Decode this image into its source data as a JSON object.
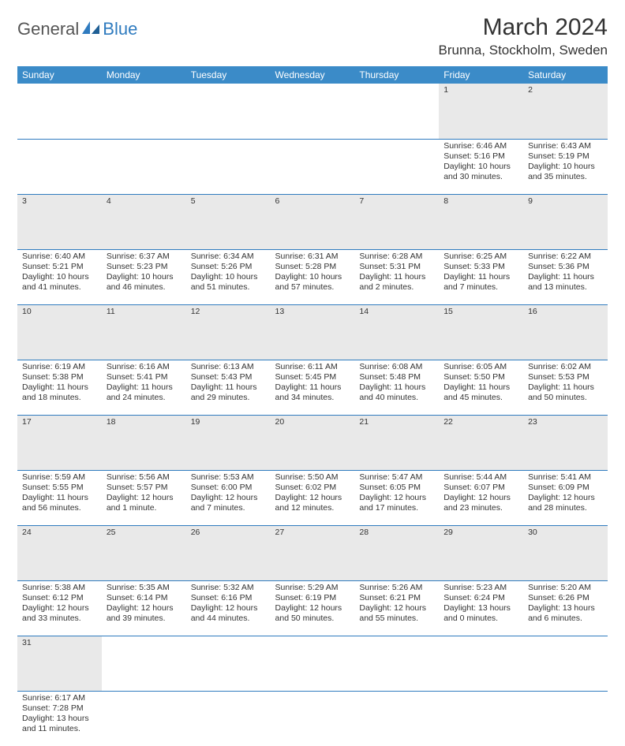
{
  "logo": {
    "text1": "General",
    "text2": "Blue"
  },
  "title": "March 2024",
  "location": "Brunna, Stockholm, Sweden",
  "colors": {
    "header_bg": "#3b8bc8",
    "row_divider": "#2f7bbf",
    "daynum_bg": "#e9e9e9",
    "logo_accent": "#2f7bbf"
  },
  "day_headers": [
    "Sunday",
    "Monday",
    "Tuesday",
    "Wednesday",
    "Thursday",
    "Friday",
    "Saturday"
  ],
  "weeks": [
    {
      "nums": [
        "",
        "",
        "",
        "",
        "",
        "1",
        "2"
      ],
      "cells": [
        null,
        null,
        null,
        null,
        null,
        {
          "sunrise": "Sunrise: 6:46 AM",
          "sunset": "Sunset: 5:16 PM",
          "day1": "Daylight: 10 hours",
          "day2": "and 30 minutes."
        },
        {
          "sunrise": "Sunrise: 6:43 AM",
          "sunset": "Sunset: 5:19 PM",
          "day1": "Daylight: 10 hours",
          "day2": "and 35 minutes."
        }
      ]
    },
    {
      "nums": [
        "3",
        "4",
        "5",
        "6",
        "7",
        "8",
        "9"
      ],
      "cells": [
        {
          "sunrise": "Sunrise: 6:40 AM",
          "sunset": "Sunset: 5:21 PM",
          "day1": "Daylight: 10 hours",
          "day2": "and 41 minutes."
        },
        {
          "sunrise": "Sunrise: 6:37 AM",
          "sunset": "Sunset: 5:23 PM",
          "day1": "Daylight: 10 hours",
          "day2": "and 46 minutes."
        },
        {
          "sunrise": "Sunrise: 6:34 AM",
          "sunset": "Sunset: 5:26 PM",
          "day1": "Daylight: 10 hours",
          "day2": "and 51 minutes."
        },
        {
          "sunrise": "Sunrise: 6:31 AM",
          "sunset": "Sunset: 5:28 PM",
          "day1": "Daylight: 10 hours",
          "day2": "and 57 minutes."
        },
        {
          "sunrise": "Sunrise: 6:28 AM",
          "sunset": "Sunset: 5:31 PM",
          "day1": "Daylight: 11 hours",
          "day2": "and 2 minutes."
        },
        {
          "sunrise": "Sunrise: 6:25 AM",
          "sunset": "Sunset: 5:33 PM",
          "day1": "Daylight: 11 hours",
          "day2": "and 7 minutes."
        },
        {
          "sunrise": "Sunrise: 6:22 AM",
          "sunset": "Sunset: 5:36 PM",
          "day1": "Daylight: 11 hours",
          "day2": "and 13 minutes."
        }
      ]
    },
    {
      "nums": [
        "10",
        "11",
        "12",
        "13",
        "14",
        "15",
        "16"
      ],
      "cells": [
        {
          "sunrise": "Sunrise: 6:19 AM",
          "sunset": "Sunset: 5:38 PM",
          "day1": "Daylight: 11 hours",
          "day2": "and 18 minutes."
        },
        {
          "sunrise": "Sunrise: 6:16 AM",
          "sunset": "Sunset: 5:41 PM",
          "day1": "Daylight: 11 hours",
          "day2": "and 24 minutes."
        },
        {
          "sunrise": "Sunrise: 6:13 AM",
          "sunset": "Sunset: 5:43 PM",
          "day1": "Daylight: 11 hours",
          "day2": "and 29 minutes."
        },
        {
          "sunrise": "Sunrise: 6:11 AM",
          "sunset": "Sunset: 5:45 PM",
          "day1": "Daylight: 11 hours",
          "day2": "and 34 minutes."
        },
        {
          "sunrise": "Sunrise: 6:08 AM",
          "sunset": "Sunset: 5:48 PM",
          "day1": "Daylight: 11 hours",
          "day2": "and 40 minutes."
        },
        {
          "sunrise": "Sunrise: 6:05 AM",
          "sunset": "Sunset: 5:50 PM",
          "day1": "Daylight: 11 hours",
          "day2": "and 45 minutes."
        },
        {
          "sunrise": "Sunrise: 6:02 AM",
          "sunset": "Sunset: 5:53 PM",
          "day1": "Daylight: 11 hours",
          "day2": "and 50 minutes."
        }
      ]
    },
    {
      "nums": [
        "17",
        "18",
        "19",
        "20",
        "21",
        "22",
        "23"
      ],
      "cells": [
        {
          "sunrise": "Sunrise: 5:59 AM",
          "sunset": "Sunset: 5:55 PM",
          "day1": "Daylight: 11 hours",
          "day2": "and 56 minutes."
        },
        {
          "sunrise": "Sunrise: 5:56 AM",
          "sunset": "Sunset: 5:57 PM",
          "day1": "Daylight: 12 hours",
          "day2": "and 1 minute."
        },
        {
          "sunrise": "Sunrise: 5:53 AM",
          "sunset": "Sunset: 6:00 PM",
          "day1": "Daylight: 12 hours",
          "day2": "and 7 minutes."
        },
        {
          "sunrise": "Sunrise: 5:50 AM",
          "sunset": "Sunset: 6:02 PM",
          "day1": "Daylight: 12 hours",
          "day2": "and 12 minutes."
        },
        {
          "sunrise": "Sunrise: 5:47 AM",
          "sunset": "Sunset: 6:05 PM",
          "day1": "Daylight: 12 hours",
          "day2": "and 17 minutes."
        },
        {
          "sunrise": "Sunrise: 5:44 AM",
          "sunset": "Sunset: 6:07 PM",
          "day1": "Daylight: 12 hours",
          "day2": "and 23 minutes."
        },
        {
          "sunrise": "Sunrise: 5:41 AM",
          "sunset": "Sunset: 6:09 PM",
          "day1": "Daylight: 12 hours",
          "day2": "and 28 minutes."
        }
      ]
    },
    {
      "nums": [
        "24",
        "25",
        "26",
        "27",
        "28",
        "29",
        "30"
      ],
      "cells": [
        {
          "sunrise": "Sunrise: 5:38 AM",
          "sunset": "Sunset: 6:12 PM",
          "day1": "Daylight: 12 hours",
          "day2": "and 33 minutes."
        },
        {
          "sunrise": "Sunrise: 5:35 AM",
          "sunset": "Sunset: 6:14 PM",
          "day1": "Daylight: 12 hours",
          "day2": "and 39 minutes."
        },
        {
          "sunrise": "Sunrise: 5:32 AM",
          "sunset": "Sunset: 6:16 PM",
          "day1": "Daylight: 12 hours",
          "day2": "and 44 minutes."
        },
        {
          "sunrise": "Sunrise: 5:29 AM",
          "sunset": "Sunset: 6:19 PM",
          "day1": "Daylight: 12 hours",
          "day2": "and 50 minutes."
        },
        {
          "sunrise": "Sunrise: 5:26 AM",
          "sunset": "Sunset: 6:21 PM",
          "day1": "Daylight: 12 hours",
          "day2": "and 55 minutes."
        },
        {
          "sunrise": "Sunrise: 5:23 AM",
          "sunset": "Sunset: 6:24 PM",
          "day1": "Daylight: 13 hours",
          "day2": "and 0 minutes."
        },
        {
          "sunrise": "Sunrise: 5:20 AM",
          "sunset": "Sunset: 6:26 PM",
          "day1": "Daylight: 13 hours",
          "day2": "and 6 minutes."
        }
      ]
    },
    {
      "nums": [
        "31",
        "",
        "",
        "",
        "",
        "",
        ""
      ],
      "cells": [
        {
          "sunrise": "Sunrise: 6:17 AM",
          "sunset": "Sunset: 7:28 PM",
          "day1": "Daylight: 13 hours",
          "day2": "and 11 minutes."
        },
        null,
        null,
        null,
        null,
        null,
        null
      ],
      "last": true
    }
  ]
}
